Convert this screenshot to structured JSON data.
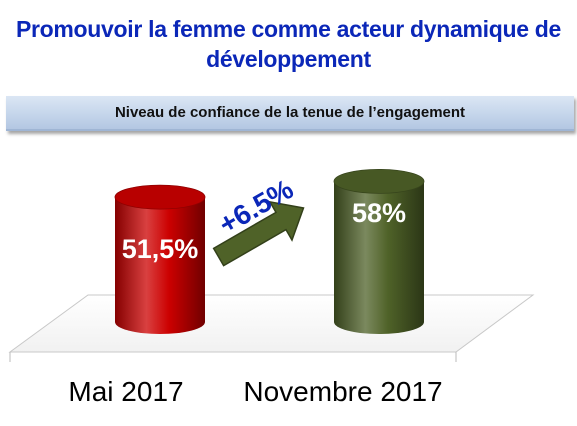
{
  "title": "Promouvoir la femme comme acteur dynamique de développement",
  "subtitle": "Niveau de confiance de la tenue de l’engagement",
  "chart_data": {
    "type": "bar",
    "categories": [
      "Mai 2017",
      "Novembre 2017"
    ],
    "values": [
      51.5,
      58
    ],
    "value_labels": [
      "51,5%",
      "58%"
    ],
    "unit": "%",
    "bar_colors": [
      "#cc0000",
      "#4f6228"
    ],
    "change_label": "+6.5%",
    "change_arrow_color": "#4f6228",
    "change_label_color": "#0b27b8",
    "title": "Niveau de confiance de la tenue de l’engagement",
    "grid": false,
    "legend": "none"
  }
}
